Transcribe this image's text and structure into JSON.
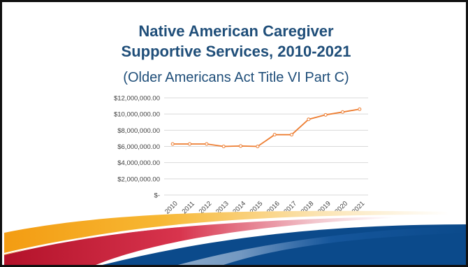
{
  "slide": {
    "title_line1": "Native American Caregiver",
    "title_line2": "Supportive Services, 2010-2021",
    "subtitle": "(Older Americans Act Title VI Part C)"
  },
  "chart_data": {
    "type": "line",
    "x": [
      "2010",
      "2011",
      "2012",
      "2013",
      "2014",
      "2015",
      "2016",
      "2017",
      "2018",
      "2019",
      "2020",
      "2021"
    ],
    "series": [
      {
        "values": [
          6300000,
          6300000,
          6300000,
          6000000,
          6050000,
          6000000,
          7450000,
          7450000,
          9350000,
          9900000,
          10250000,
          10600000
        ],
        "color": "#ed7d31"
      }
    ],
    "yticks": [
      "$-",
      "$2,000,000.00",
      "$4,000,000.00",
      "$6,000,000.00",
      "$8,000,000.00",
      "$10,000,000.00",
      "$12,000,000.00"
    ],
    "ylim": [
      0,
      12000000
    ],
    "grid": true,
    "legend": "none",
    "title": "",
    "xlabel": "",
    "ylabel": ""
  },
  "theme": {
    "title_color": "#1f4e79",
    "navy": "#0b4a8b",
    "orange": "#f5a11a",
    "red": "#c8102e"
  }
}
